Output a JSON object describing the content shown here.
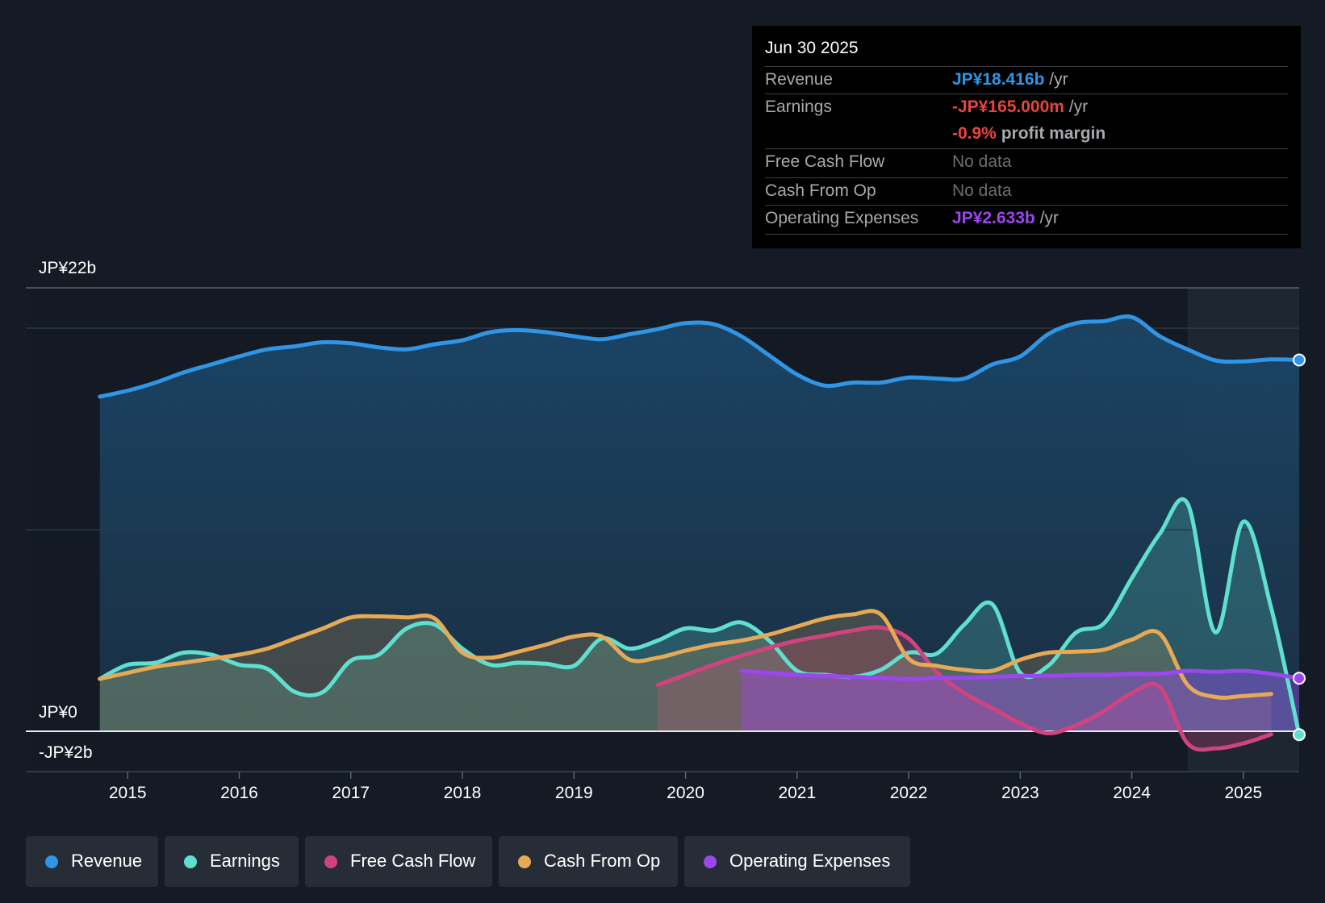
{
  "tooltip": {
    "date": "Jun 30 2025",
    "rows": [
      {
        "label": "Revenue",
        "value": "JP¥18.416b",
        "unit": " /yr",
        "color": "#2f95e4"
      },
      {
        "label": "Earnings",
        "value": "-JP¥165.000m",
        "unit": " /yr",
        "color": "#e8453c"
      },
      {
        "label": "",
        "value": "-0.9%",
        "unit": " profit margin",
        "color": "#e8453c"
      },
      {
        "label": "Free Cash Flow",
        "value": "No data",
        "unit": "",
        "color": "#6a6e73"
      },
      {
        "label": "Cash From Op",
        "value": "No data",
        "unit": "",
        "color": "#6a6e73"
      },
      {
        "label": "Operating Expenses",
        "value": "JP¥2.633b",
        "unit": " /yr",
        "color": "#9c46ef"
      }
    ]
  },
  "legend": [
    {
      "label": "Revenue",
      "color": "#2f95e4"
    },
    {
      "label": "Earnings",
      "color": "#5fe0cf"
    },
    {
      "label": "Free Cash Flow",
      "color": "#d0437f"
    },
    {
      "label": "Cash From Op",
      "color": "#e6a955"
    },
    {
      "label": "Operating Expenses",
      "color": "#9c46ef"
    }
  ],
  "chart_data": {
    "type": "line",
    "title": "",
    "xlabel": "",
    "ylabel": "",
    "y_tick_labels": {
      "top": "JP¥22b",
      "zero": "JP¥0",
      "bottom": "-JP¥2b"
    },
    "ylim": [
      -2,
      22
    ],
    "xlim": [
      2014.55,
      2025.5
    ],
    "x_ticks": [
      "2015",
      "2016",
      "2017",
      "2018",
      "2019",
      "2020",
      "2021",
      "2022",
      "2023",
      "2024",
      "2025"
    ],
    "future_shade_from": 2024.5,
    "grid": true,
    "legend_position": "bottom",
    "units": "JP¥ billions",
    "series": [
      {
        "name": "Revenue",
        "color": "#2f95e4",
        "area": true,
        "x": [
          2014.75,
          2015.0,
          2015.25,
          2015.5,
          2015.75,
          2016.0,
          2016.25,
          2016.5,
          2016.75,
          2017.0,
          2017.25,
          2017.5,
          2017.75,
          2018.0,
          2018.25,
          2018.5,
          2018.75,
          2019.0,
          2019.25,
          2019.5,
          2019.75,
          2020.0,
          2020.25,
          2020.5,
          2020.75,
          2021.0,
          2021.25,
          2021.5,
          2021.75,
          2022.0,
          2022.25,
          2022.5,
          2022.75,
          2023.0,
          2023.25,
          2023.5,
          2023.75,
          2024.0,
          2024.25,
          2024.5,
          2024.75,
          2025.0,
          2025.25,
          2025.5
        ],
        "y": [
          16.6,
          16.9,
          17.3,
          17.8,
          18.2,
          18.6,
          18.95,
          19.1,
          19.3,
          19.25,
          19.05,
          18.95,
          19.2,
          19.4,
          19.8,
          19.9,
          19.8,
          19.6,
          19.45,
          19.7,
          19.95,
          20.25,
          20.2,
          19.6,
          18.65,
          17.7,
          17.15,
          17.3,
          17.3,
          17.55,
          17.5,
          17.5,
          18.2,
          18.6,
          19.7,
          20.25,
          20.35,
          20.55,
          19.6,
          18.95,
          18.4,
          18.35,
          18.45,
          18.42
        ]
      },
      {
        "name": "Earnings",
        "color": "#5fe0cf",
        "area": true,
        "x": [
          2014.75,
          2015.0,
          2015.25,
          2015.5,
          2015.75,
          2016.0,
          2016.25,
          2016.5,
          2016.75,
          2017.0,
          2017.25,
          2017.5,
          2017.75,
          2018.0,
          2018.25,
          2018.5,
          2018.75,
          2019.0,
          2019.25,
          2019.5,
          2019.75,
          2020.0,
          2020.25,
          2020.5,
          2020.75,
          2021.0,
          2021.25,
          2021.5,
          2021.75,
          2022.0,
          2022.25,
          2022.5,
          2022.75,
          2023.0,
          2023.25,
          2023.5,
          2023.75,
          2024.0,
          2024.25,
          2024.5,
          2024.75,
          2025.0,
          2025.25,
          2025.5
        ],
        "y": [
          2.6,
          3.3,
          3.4,
          3.9,
          3.8,
          3.3,
          3.1,
          1.95,
          1.95,
          3.5,
          3.8,
          5.1,
          5.3,
          4.1,
          3.3,
          3.4,
          3.35,
          3.25,
          4.6,
          4.1,
          4.5,
          5.1,
          5.0,
          5.4,
          4.5,
          3.0,
          2.8,
          2.7,
          3.05,
          3.9,
          3.85,
          5.3,
          6.3,
          2.9,
          3.25,
          4.9,
          5.35,
          7.6,
          9.8,
          11.3,
          4.9,
          10.4,
          6.1,
          -0.17
        ]
      },
      {
        "name": "Free Cash Flow",
        "color": "#d0437f",
        "area": true,
        "x": [
          2019.75,
          2020.0,
          2020.25,
          2020.5,
          2020.75,
          2021.0,
          2021.25,
          2021.5,
          2021.75,
          2022.0,
          2022.25,
          2022.5,
          2022.75,
          2023.0,
          2023.25,
          2023.5,
          2023.75,
          2024.0,
          2024.25,
          2024.5,
          2024.75,
          2025.0,
          2025.25
        ],
        "y": [
          2.3,
          2.8,
          3.3,
          3.75,
          4.15,
          4.5,
          4.75,
          5.0,
          5.15,
          4.6,
          2.95,
          1.9,
          1.15,
          0.4,
          -0.1,
          0.3,
          1.0,
          1.9,
          2.2,
          -0.6,
          -0.85,
          -0.6,
          -0.15
        ]
      },
      {
        "name": "Cash From Op",
        "color": "#e6a955",
        "area": true,
        "x": [
          2014.75,
          2015.0,
          2015.25,
          2015.5,
          2015.75,
          2016.0,
          2016.25,
          2016.5,
          2016.75,
          2017.0,
          2017.25,
          2017.5,
          2017.75,
          2018.0,
          2018.25,
          2018.5,
          2018.75,
          2019.0,
          2019.25,
          2019.5,
          2019.75,
          2020.0,
          2020.25,
          2020.5,
          2020.75,
          2021.0,
          2021.25,
          2021.5,
          2021.75,
          2022.0,
          2022.25,
          2022.5,
          2022.75,
          2023.0,
          2023.25,
          2023.5,
          2023.75,
          2024.0,
          2024.25,
          2024.5,
          2024.75,
          2025.0,
          2025.25
        ],
        "y": [
          2.6,
          2.9,
          3.2,
          3.4,
          3.6,
          3.8,
          4.1,
          4.6,
          5.1,
          5.65,
          5.7,
          5.65,
          5.6,
          3.9,
          3.65,
          3.95,
          4.3,
          4.7,
          4.7,
          3.55,
          3.65,
          4.0,
          4.3,
          4.5,
          4.8,
          5.2,
          5.6,
          5.8,
          5.8,
          3.6,
          3.25,
          3.05,
          3.0,
          3.55,
          3.9,
          3.95,
          4.05,
          4.55,
          4.85,
          2.3,
          1.7,
          1.75,
          1.85
        ]
      },
      {
        "name": "Operating Expenses",
        "color": "#9c46ef",
        "area": true,
        "x": [
          2020.5,
          2020.75,
          2021.0,
          2021.25,
          2021.5,
          2021.75,
          2022.0,
          2022.25,
          2022.5,
          2022.75,
          2023.0,
          2023.25,
          2023.5,
          2023.75,
          2024.0,
          2024.25,
          2024.5,
          2024.75,
          2025.0,
          2025.25,
          2025.5
        ],
        "y": [
          3.0,
          2.9,
          2.8,
          2.75,
          2.7,
          2.65,
          2.6,
          2.65,
          2.65,
          2.7,
          2.75,
          2.75,
          2.8,
          2.8,
          2.85,
          2.85,
          3.0,
          2.95,
          3.0,
          2.85,
          2.63
        ]
      }
    ]
  }
}
